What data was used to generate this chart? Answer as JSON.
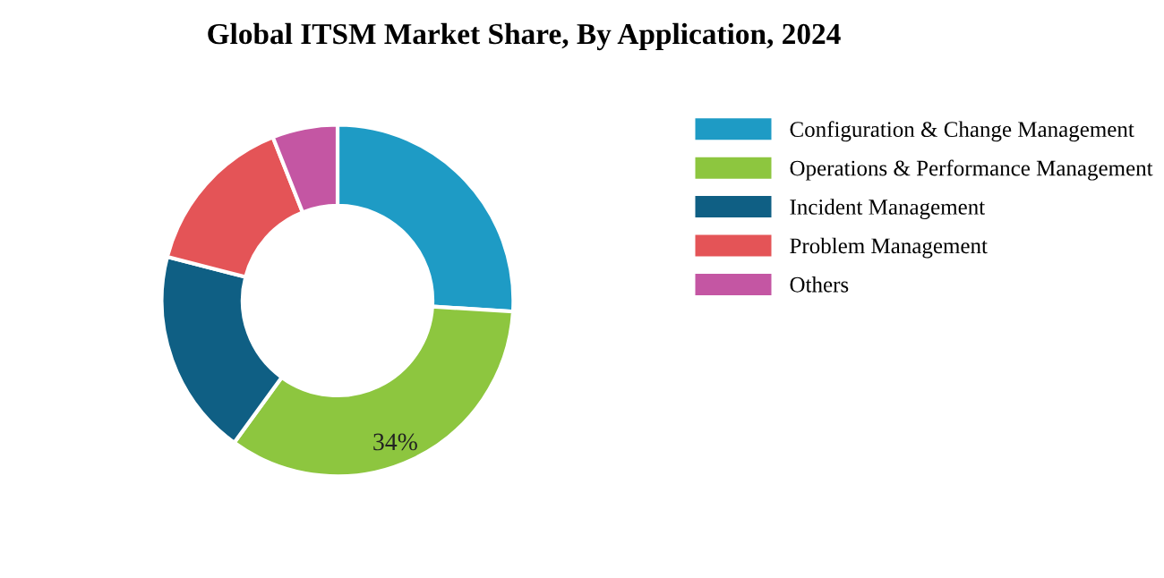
{
  "chart_data": {
    "type": "donut",
    "title": "Global ITSM Market Share, By Application, 2024",
    "categories": [
      "Configuration & Change Management",
      "Operations & Performance Management",
      "Incident Management",
      "Problem Management",
      "Others"
    ],
    "values": [
      26,
      34,
      19,
      15,
      6
    ],
    "value_labels": [
      null,
      "34%",
      null,
      null,
      null
    ],
    "colors": [
      "#1e9bc5",
      "#8dc63f",
      "#0f5f84",
      "#e45457",
      "#c456a3"
    ],
    "legend": "right"
  }
}
